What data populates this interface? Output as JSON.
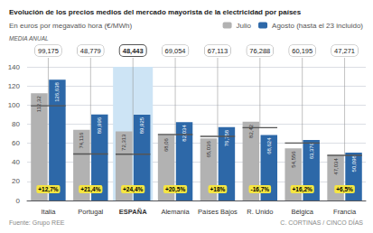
{
  "chart_data": {
    "type": "bar",
    "title": "Evolución de los precios medios del mercado mayorista de la electricidad por países",
    "subtitle": "En euros por megavatio hora (€/MWh)",
    "categories": [
      "Italia",
      "Portugal",
      "ESPAÑA",
      "Alemania",
      "Países Bajos",
      "R. Unido",
      "Bélgica",
      "Francia"
    ],
    "series": [
      {
        "name": "Julio",
        "color": "#b2b2b2",
        "values": [
          112.32,
          74.116,
          72.313,
          68.06,
          65.036,
          82.42,
          54.556,
          47.034
        ],
        "value_labels": [
          "112,32",
          "74,116",
          "72,313",
          "68,06",
          "65,036",
          "82,42",
          "54,556",
          "47,034"
        ]
      },
      {
        "name": "Agosto (hasta el 23 incluido)",
        "color": "#2d68a8",
        "values": [
          126.638,
          89.996,
          89.925,
          82.034,
          76.758,
          68.624,
          63.379,
          50.098
        ],
        "value_labels": [
          "126,638",
          "89,996",
          "89,925",
          "82,034",
          "76,758",
          "68,624",
          "63,379",
          "50,098"
        ]
      }
    ],
    "media_anual": {
      "label": "MEDIA ANUAL",
      "values": [
        99.175,
        48.779,
        48.443,
        69.054,
        67.113,
        76.288,
        60.195,
        47.271
      ],
      "value_labels": [
        "99,175",
        "48,779",
        "48,443",
        "69,054",
        "67,113",
        "76,288",
        "60,195",
        "47,271"
      ]
    },
    "pct_change": {
      "labels": [
        "+12,7%",
        "+21,4%",
        "+24,4%",
        "+20,5%",
        "+18%",
        "-16,7%",
        "+16,2%",
        "+6,5%"
      ],
      "color": "#f5e642"
    },
    "highlight": {
      "category": "ESPAÑA",
      "color": "#cde4f5"
    },
    "ylim": [
      0,
      140
    ],
    "yticks": [
      0,
      20,
      40,
      60,
      80,
      100,
      120,
      140
    ],
    "grid": true,
    "legend": "upper right",
    "data_labels": true,
    "source": "Fuente: Grupo REE",
    "credit": "C. CORTINAS / CINCO DÍAS"
  }
}
